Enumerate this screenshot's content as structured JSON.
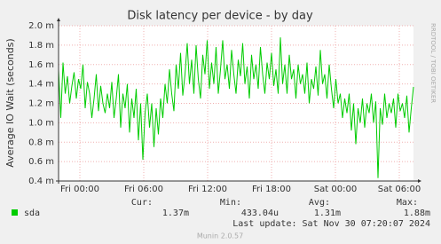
{
  "chart_data": {
    "type": "line",
    "title": "Disk latency per device - by day",
    "y_label": "Average IO Wait (seconds)",
    "watermark": "RRDTOOL / TOBI OETIKER",
    "xlim": [
      -2,
      31.333
    ],
    "xticks": [
      {
        "value": 0,
        "label": "Fri 00:00"
      },
      {
        "value": 6,
        "label": "Fri 06:00"
      },
      {
        "value": 12,
        "label": "Fri 12:00"
      },
      {
        "value": 18,
        "label": "Fri 18:00"
      },
      {
        "value": 24,
        "label": "Sat 00:00"
      },
      {
        "value": 30,
        "label": "Sat 06:00"
      }
    ],
    "ylim": [
      0.4,
      2.0
    ],
    "yticks": [
      {
        "value": 0.4,
        "label": "0.4 m"
      },
      {
        "value": 0.6,
        "label": "0.6 m"
      },
      {
        "value": 0.8,
        "label": "0.8 m"
      },
      {
        "value": 1.0,
        "label": "1.0 m"
      },
      {
        "value": 1.2,
        "label": "1.2 m"
      },
      {
        "value": 1.4,
        "label": "1.4 m"
      },
      {
        "value": 1.6,
        "label": "1.6 m"
      },
      {
        "value": 1.8,
        "label": "1.8 m"
      },
      {
        "value": 2.0,
        "label": "2.0 m"
      }
    ],
    "grid": true,
    "stat_headers": [
      "Cur:",
      "Min:",
      "Avg:",
      "Max:"
    ],
    "series": [
      {
        "name": "sda",
        "color": "#00cc00",
        "stats": [
          "1.37m",
          "433.04u",
          "1.31m",
          "1.88m"
        ],
        "values": [
          1.55,
          1.05,
          1.62,
          1.3,
          1.48,
          1.2,
          1.38,
          1.52,
          1.25,
          1.45,
          1.35,
          1.6,
          1.15,
          1.42,
          1.3,
          1.05,
          1.25,
          1.5,
          1.12,
          1.38,
          1.2,
          1.1,
          1.3,
          1.15,
          1.42,
          1.05,
          1.25,
          1.5,
          0.95,
          1.3,
          1.15,
          1.4,
          0.9,
          1.25,
          1.05,
          1.35,
          0.82,
          1.2,
          0.62,
          1.1,
          1.3,
          0.95,
          1.2,
          0.75,
          1.15,
          0.88,
          1.25,
          1.05,
          1.4,
          1.2,
          1.55,
          1.3,
          1.12,
          1.6,
          1.35,
          1.72,
          1.28,
          1.5,
          1.82,
          1.4,
          1.65,
          1.3,
          1.8,
          1.45,
          1.25,
          1.7,
          1.5,
          1.85,
          1.35,
          1.62,
          1.4,
          1.78,
          1.3,
          1.55,
          1.85,
          1.45,
          1.6,
          1.35,
          1.75,
          1.5,
          1.3,
          1.65,
          1.48,
          1.82,
          1.4,
          1.58,
          1.25,
          1.7,
          1.45,
          1.6,
          1.35,
          1.78,
          1.5,
          1.3,
          1.62,
          1.45,
          1.72,
          1.38,
          1.55,
          1.3,
          1.88,
          1.4,
          1.6,
          1.3,
          1.7,
          1.45,
          1.55,
          1.25,
          1.6,
          1.4,
          1.5,
          1.3,
          1.62,
          1.2,
          1.45,
          1.35,
          1.58,
          1.28,
          1.75,
          1.4,
          1.5,
          1.25,
          1.6,
          1.35,
          1.15,
          1.45,
          1.2,
          1.3,
          1.05,
          1.25,
          1.1,
          1.3,
          0.92,
          1.2,
          0.78,
          1.15,
          1.0,
          1.25,
          0.95,
          1.2,
          1.1,
          1.3,
          1.0,
          1.22,
          0.43,
          1.15,
          0.98,
          1.3,
          1.05,
          1.2,
          1.1,
          1.25,
          0.95,
          1.3,
          1.12,
          1.2,
          1.05,
          1.28,
          0.9,
          1.15,
          1.37
        ]
      }
    ],
    "last_update": "Last update: Sat Nov 30 07:20:07 2024",
    "footer": "Munin 2.0.57"
  }
}
